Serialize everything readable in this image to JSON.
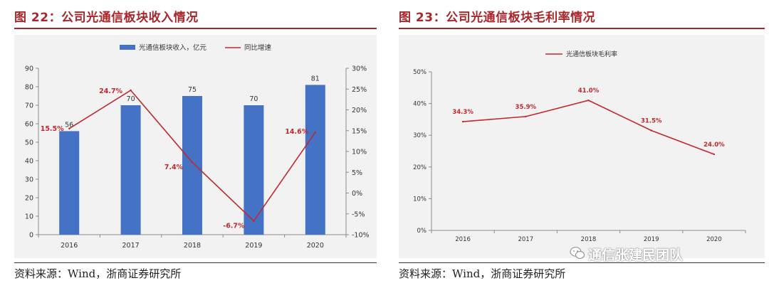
{
  "left_panel": {
    "title": "图 22：公司光通信板块收入情况",
    "source": "资料来源：Wind，浙商证券研究所"
  },
  "right_panel": {
    "title": "图 23：公司光通信板块毛利率情况",
    "source": "资料来源：Wind，浙商证券研究所"
  },
  "watermark": {
    "text": "通信张建民团队",
    "icon": "wechat-icon"
  },
  "colors": {
    "title_red": "#a8272b",
    "bar_blue": "#4472c4",
    "line_red": "#c0282d"
  },
  "chart_data": [
    {
      "type": "bar",
      "categories": [
        "2016",
        "2017",
        "2018",
        "2019",
        "2020"
      ],
      "series": [
        {
          "name": "光通信板块收入，亿元",
          "kind": "bar",
          "axis": "left",
          "values": [
            56,
            70,
            75,
            70,
            81
          ],
          "labels": [
            "56",
            "70",
            "75",
            "70",
            "81"
          ]
        },
        {
          "name": "同比增速",
          "kind": "line",
          "axis": "right",
          "values": [
            15.5,
            24.7,
            7.4,
            -6.7,
            14.6
          ],
          "labels": [
            "15.5%",
            "24.7%",
            "7.4%",
            "-6.7%",
            "14.6%"
          ]
        }
      ],
      "y_left": {
        "min": 0,
        "max": 90,
        "step": 10,
        "ticks": [
          "0",
          "10",
          "20",
          "30",
          "40",
          "50",
          "60",
          "70",
          "80",
          "90"
        ]
      },
      "y_right": {
        "min": -10,
        "max": 30,
        "step": 5,
        "ticks": [
          "-10%",
          "-5%",
          "0%",
          "5%",
          "10%",
          "15%",
          "20%",
          "25%",
          "30%"
        ]
      },
      "legend": "top-center",
      "grid": false
    },
    {
      "type": "line",
      "categories": [
        "2016",
        "2017",
        "2018",
        "2019",
        "2020"
      ],
      "series": [
        {
          "name": "光通信板块毛利率",
          "values": [
            34.3,
            35.9,
            41.0,
            31.5,
            24.0
          ],
          "labels": [
            "34.3%",
            "35.9%",
            "41.0%",
            "31.5%",
            "24.0%"
          ]
        }
      ],
      "y": {
        "min": 0,
        "max": 50,
        "step": 10,
        "ticks": [
          "0%",
          "10%",
          "20%",
          "30%",
          "40%",
          "50%"
        ]
      },
      "legend": "top-left",
      "grid": false
    }
  ]
}
